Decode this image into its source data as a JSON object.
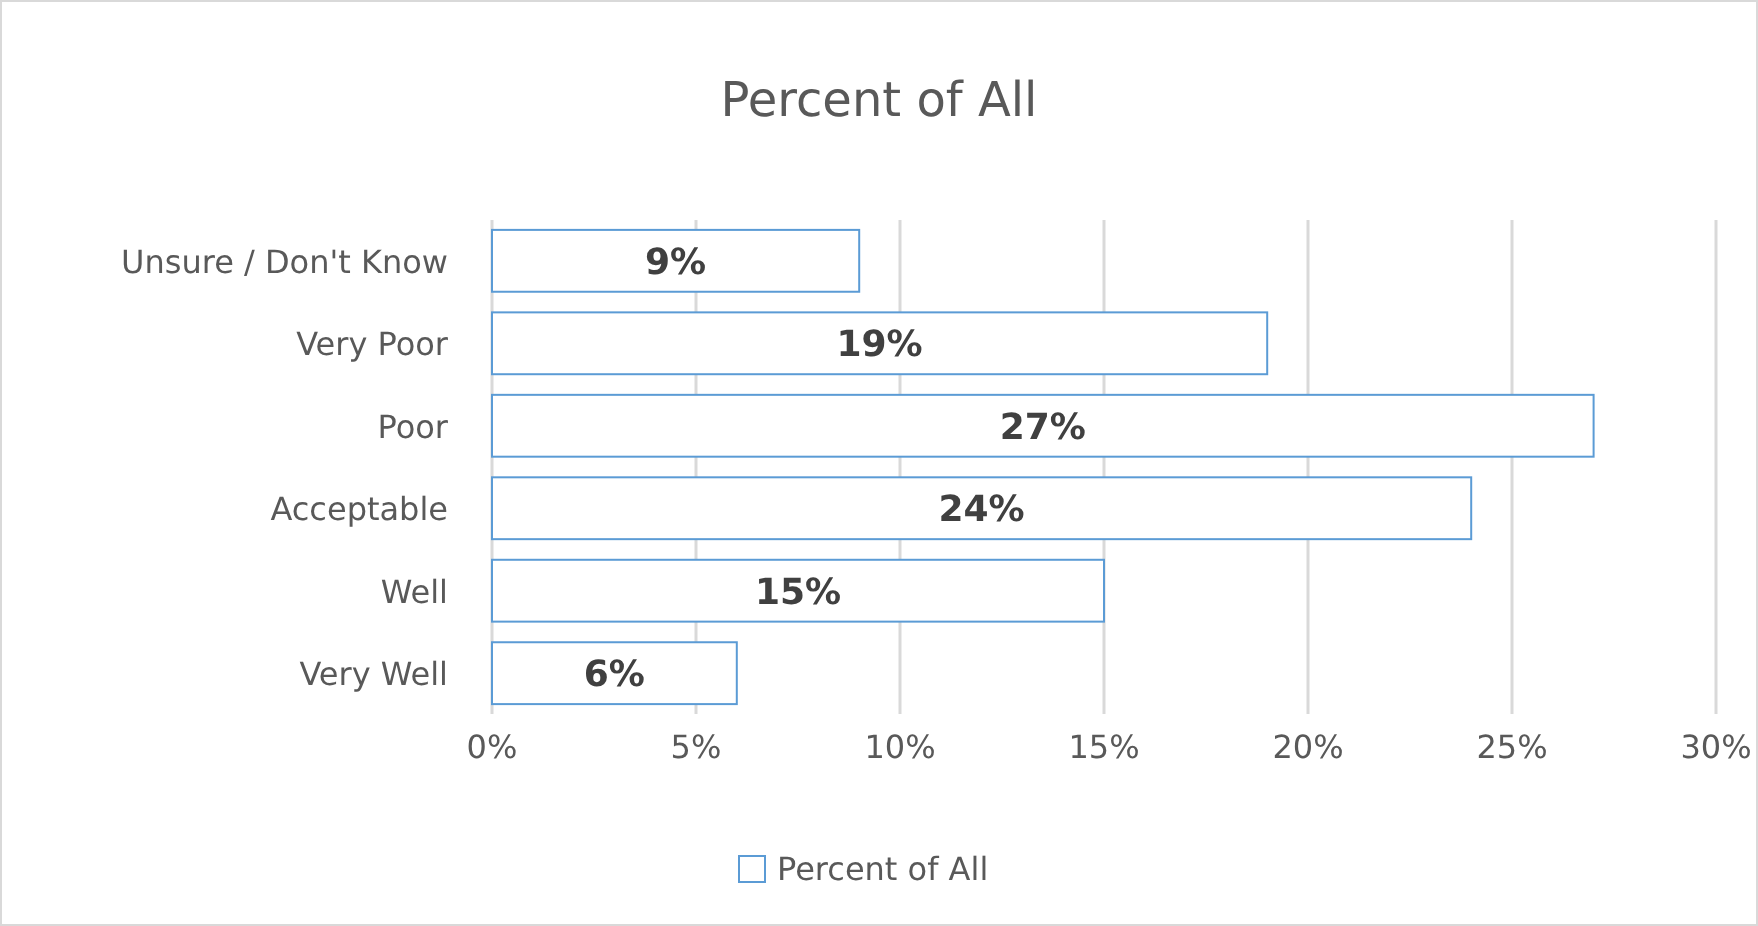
{
  "chart_data": {
    "type": "bar",
    "orientation": "horizontal",
    "title": "Percent of All",
    "categories": [
      "Unsure / Don't Know",
      "Very Poor",
      "Poor",
      "Acceptable",
      "Well",
      "Very Well"
    ],
    "series": [
      {
        "name": "Percent of All",
        "color": "#5b9bd5",
        "values": [
          9,
          19,
          27,
          24,
          15,
          6
        ],
        "value_labels": [
          "9%",
          "19%",
          "27%",
          "24%",
          "15%",
          "6%"
        ]
      }
    ],
    "xlim": [
      0,
      30
    ],
    "xticks": [
      {
        "value": 0,
        "label": "0%"
      },
      {
        "value": 5,
        "label": "5%"
      },
      {
        "value": 10,
        "label": "10%"
      },
      {
        "value": 15,
        "label": "15%"
      },
      {
        "value": 20,
        "label": "20%"
      },
      {
        "value": 25,
        "label": "25%"
      },
      {
        "value": 30,
        "label": "30%"
      }
    ],
    "grid": "x",
    "legend": "bottom"
  }
}
